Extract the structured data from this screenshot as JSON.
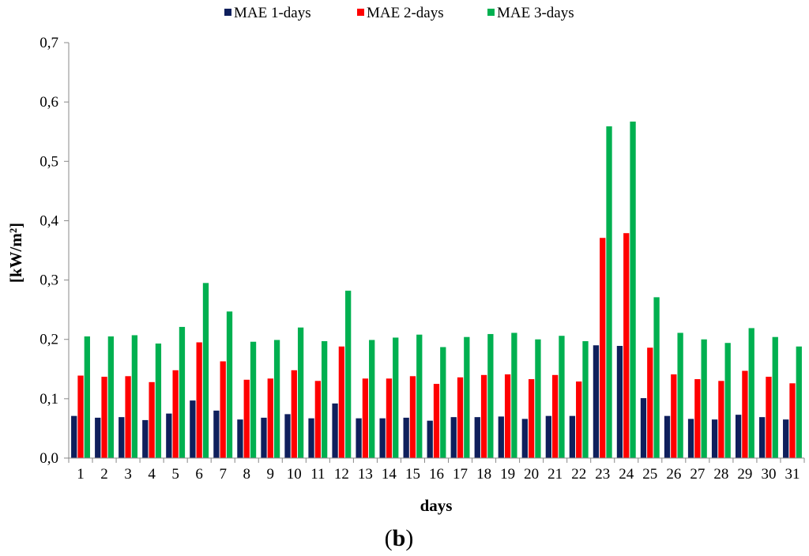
{
  "chart_data": {
    "type": "bar",
    "title": "",
    "xlabel": "days",
    "ylabel": "[kW/m²]",
    "caption": {
      "open": "(",
      "letter": "b",
      "close": ")"
    },
    "ylim": [
      0,
      0.7
    ],
    "yticks": [
      "0,0",
      "0,1",
      "0,2",
      "0,3",
      "0,4",
      "0,5",
      "0,6",
      "0,7"
    ],
    "grid": false,
    "legend_position": "top",
    "categories": [
      "1",
      "2",
      "3",
      "4",
      "5",
      "6",
      "7",
      "8",
      "9",
      "10",
      "11",
      "12",
      "13",
      "14",
      "15",
      "16",
      "17",
      "18",
      "19",
      "20",
      "21",
      "22",
      "23",
      "24",
      "25",
      "26",
      "27",
      "28",
      "29",
      "30",
      "31"
    ],
    "series": [
      {
        "name": "MAE 1-days",
        "color": "#0f1f5c",
        "values": [
          0.071,
          0.068,
          0.069,
          0.064,
          0.075,
          0.097,
          0.08,
          0.065,
          0.068,
          0.074,
          0.067,
          0.092,
          0.067,
          0.067,
          0.068,
          0.063,
          0.069,
          0.069,
          0.07,
          0.066,
          0.071,
          0.071,
          0.19,
          0.189,
          0.101,
          0.071,
          0.066,
          0.065,
          0.073,
          0.069,
          0.065
        ]
      },
      {
        "name": "MAE 2-days",
        "color": "#ff0000",
        "values": [
          0.139,
          0.137,
          0.138,
          0.128,
          0.148,
          0.195,
          0.163,
          0.132,
          0.134,
          0.148,
          0.13,
          0.188,
          0.134,
          0.134,
          0.138,
          0.125,
          0.136,
          0.14,
          0.141,
          0.133,
          0.14,
          0.129,
          0.371,
          0.379,
          0.186,
          0.141,
          0.133,
          0.13,
          0.147,
          0.137,
          0.126
        ]
      },
      {
        "name": "MAE 3-days",
        "color": "#00b050",
        "values": [
          0.205,
          0.205,
          0.207,
          0.193,
          0.221,
          0.295,
          0.247,
          0.196,
          0.199,
          0.22,
          0.197,
          0.282,
          0.199,
          0.203,
          0.208,
          0.187,
          0.204,
          0.209,
          0.211,
          0.2,
          0.206,
          0.197,
          0.559,
          0.567,
          0.271,
          0.211,
          0.2,
          0.194,
          0.219,
          0.204,
          0.188
        ]
      }
    ]
  }
}
